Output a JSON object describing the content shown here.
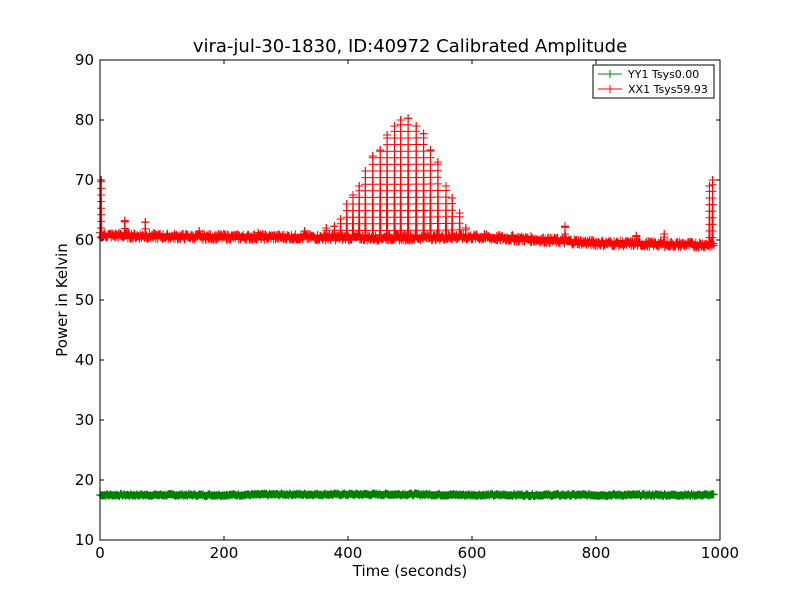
{
  "chart_data": {
    "type": "line",
    "title": "vira-jul-30-1830, ID:40972 Calibrated Amplitude",
    "xlabel": "Time (seconds)",
    "ylabel": "Power in Kelvin",
    "xlim": [
      0,
      1000
    ],
    "ylim": [
      10,
      90
    ],
    "xticks": [
      0,
      200,
      400,
      600,
      800,
      1000
    ],
    "yticks": [
      10,
      20,
      30,
      40,
      50,
      60,
      70,
      80,
      90
    ],
    "grid": false,
    "legend_position": "top-right",
    "marker": "+",
    "series": [
      {
        "name": "YY1 Tsys0.00",
        "color": "#008000",
        "baseline": 17.5,
        "x_range": [
          0,
          990
        ],
        "points": [
          [
            0,
            17.5
          ],
          [
            100,
            17.5
          ],
          [
            200,
            17.5
          ],
          [
            300,
            17.6
          ],
          [
            400,
            17.6
          ],
          [
            500,
            17.6
          ],
          [
            600,
            17.5
          ],
          [
            700,
            17.5
          ],
          [
            800,
            17.5
          ],
          [
            900,
            17.5
          ],
          [
            990,
            17.5
          ]
        ]
      },
      {
        "name": "XX1 Tsys59.93",
        "color": "#ff0000",
        "baseline_points": [
          [
            0,
            60.8
          ],
          [
            100,
            60.6
          ],
          [
            200,
            60.5
          ],
          [
            300,
            60.5
          ],
          [
            400,
            60.4
          ],
          [
            500,
            60.4
          ],
          [
            600,
            60.5
          ],
          [
            700,
            60.1
          ],
          [
            800,
            59.5
          ],
          [
            900,
            59.3
          ],
          [
            990,
            59.2
          ]
        ],
        "spikes": [
          [
            2,
            70.0
          ],
          [
            40,
            63.2
          ],
          [
            73,
            63.0
          ],
          [
            160,
            61.5
          ],
          [
            255,
            61.2
          ],
          [
            330,
            61.5
          ],
          [
            365,
            62.0
          ],
          [
            378,
            62.3
          ],
          [
            388,
            63.5
          ],
          [
            398,
            66.0
          ],
          [
            408,
            67.5
          ],
          [
            418,
            69.0
          ],
          [
            428,
            71.5
          ],
          [
            440,
            74.0
          ],
          [
            452,
            75.0
          ],
          [
            463,
            77.5
          ],
          [
            475,
            79.0
          ],
          [
            485,
            80.0
          ],
          [
            497,
            80.3
          ],
          [
            510,
            79.0
          ],
          [
            522,
            77.7
          ],
          [
            533,
            75.0
          ],
          [
            545,
            73.0
          ],
          [
            558,
            69.0
          ],
          [
            568,
            67.0
          ],
          [
            580,
            64.5
          ],
          [
            590,
            62.0
          ],
          [
            620,
            61.0
          ],
          [
            665,
            60.8
          ],
          [
            750,
            62.3
          ],
          [
            865,
            60.7
          ],
          [
            910,
            61.0
          ],
          [
            983,
            69.0
          ],
          [
            988,
            70.0
          ]
        ]
      }
    ]
  }
}
